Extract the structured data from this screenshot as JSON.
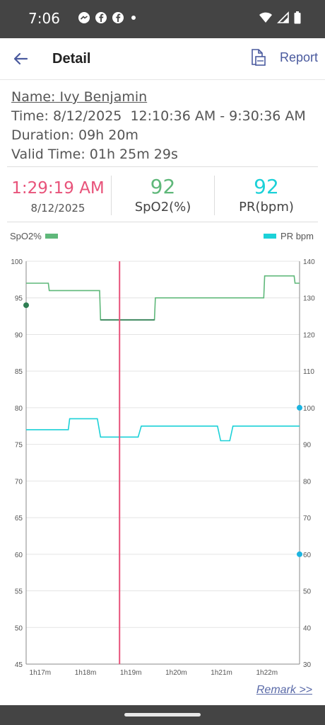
{
  "status_bar": {
    "time": "7:06",
    "left_icons": [
      "messenger-icon",
      "facebook-icon",
      "facebook-icon",
      "dot-icon"
    ],
    "right_icons": [
      "wifi-icon",
      "signal-icon",
      "battery-icon"
    ]
  },
  "app_bar": {
    "title": "Detail",
    "report_label": "Report"
  },
  "record": {
    "name_label": "Name:",
    "name": "Ivy Benjamin",
    "time_label": "Time:",
    "time_value": "8/12/2025  12:10:36 AM - 9:30:36 AM",
    "duration_label": "Duration:",
    "duration_value": "09h 20m",
    "valid_label": "Valid Time:",
    "valid_value": "01h 25m 29s"
  },
  "stats": {
    "cursor_time": "1:29:19 AM",
    "cursor_date": "8/12/2025",
    "spo2_value": "92",
    "spo2_label": "SpO2(%)",
    "pr_value": "92",
    "pr_label": "PR(bpm)"
  },
  "colors": {
    "spo2": "#5fb87a",
    "spo2_dark": "#2e7d52",
    "pr": "#1cd1d8",
    "cursor": "#e8537a",
    "cursor_time": "#e8537a"
  },
  "chart_data": {
    "type": "line",
    "legend": {
      "left": "SpO2%",
      "right": "PR bpm"
    },
    "x_ticks": [
      "1h17m",
      "1h18m",
      "1h19m",
      "1h20m",
      "1h21m",
      "1h22m"
    ],
    "x_tick_minutes": [
      77,
      78,
      79,
      80,
      81,
      82
    ],
    "xlim_minutes": [
      76.94,
      82.97
    ],
    "y_left": {
      "label": "SpO2%",
      "min": 45,
      "max": 100,
      "ticks": [
        100,
        95,
        90,
        85,
        80,
        75,
        70,
        65,
        60,
        55,
        50,
        45
      ]
    },
    "y_right": {
      "label": "PR bpm",
      "min": 30,
      "max": 140,
      "ticks": [
        140,
        130,
        120,
        110,
        100,
        90,
        80,
        70,
        60,
        50,
        40,
        30
      ]
    },
    "grid": true,
    "cursor_minutes": 79.0,
    "series": [
      {
        "name": "SpO2%",
        "axis": "left",
        "points": [
          [
            76.94,
            97
          ],
          [
            77.43,
            97
          ],
          [
            77.45,
            96
          ],
          [
            78.56,
            96
          ],
          [
            78.58,
            92
          ],
          [
            79.77,
            92
          ],
          [
            79.79,
            95
          ],
          [
            82.18,
            95
          ],
          [
            82.2,
            98
          ],
          [
            82.85,
            98
          ],
          [
            82.87,
            97
          ],
          [
            82.97,
            97
          ]
        ]
      },
      {
        "name": "PR bpm",
        "axis": "right",
        "points": [
          [
            76.94,
            94
          ],
          [
            77.87,
            94
          ],
          [
            77.9,
            97
          ],
          [
            78.51,
            97
          ],
          [
            78.58,
            92
          ],
          [
            79.41,
            92
          ],
          [
            79.48,
            95
          ],
          [
            81.16,
            95
          ],
          [
            81.23,
            91
          ],
          [
            81.43,
            91
          ],
          [
            81.5,
            95
          ],
          [
            82.97,
            95
          ]
        ]
      }
    ],
    "axis_markers": [
      {
        "axis": "left",
        "value": 94,
        "side": "left",
        "color": "#2e7d52"
      },
      {
        "axis": "right",
        "value": 100,
        "side": "right",
        "color": "#1cb4e0"
      },
      {
        "axis": "right",
        "value": 60,
        "side": "right",
        "color": "#1cb4e0"
      }
    ]
  },
  "remark_label": "Remark >>"
}
